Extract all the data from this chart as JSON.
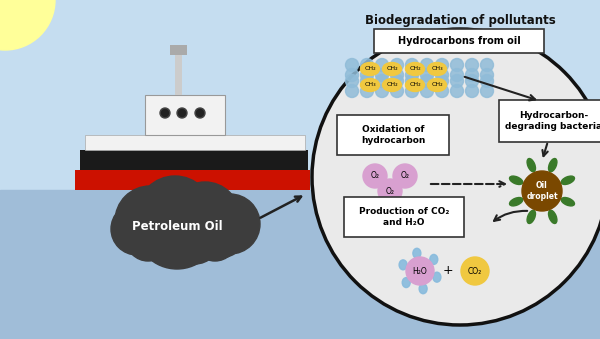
{
  "bg_sky_color": "#c5ddf0",
  "bg_water_color": "#a0bdd8",
  "sun_color": "#ffff99",
  "ship_hull_black": "#1a1a1a",
  "ship_hull_red": "#cc1100",
  "ship_body_white": "#f2f2f2",
  "ship_body_gray": "#888888",
  "cloud_color": "#3d3d3d",
  "circle_facecolor": "#eaeaea",
  "circle_edge": "#111111",
  "title_text": "Biodegradation of pollutants",
  "petroleum_text": "Petroleum Oil",
  "hydrocarbons_label": "Hydrocarbons from oil",
  "oxidation_label": "Oxidation of\nhydrocarbon",
  "bacteria_label": "Hydrocarbon-\ndegrading bacteria",
  "production_label": "Production of CO₂\nand H₂O",
  "oil_droplet_label": "Oil\ndroplet",
  "hc_yellow": "#f0c840",
  "hc_blue": "#90bcd8",
  "o2_color": "#d8a0d0",
  "co2_color": "#f0c840",
  "h2o_color": "#d8a0d0",
  "bacteria_green": "#3a7a2a",
  "oil_brown": "#7a4800",
  "box_bg": "#ffffff",
  "box_edge": "#333333",
  "arrow_color": "#222222",
  "water_split": 0.44
}
